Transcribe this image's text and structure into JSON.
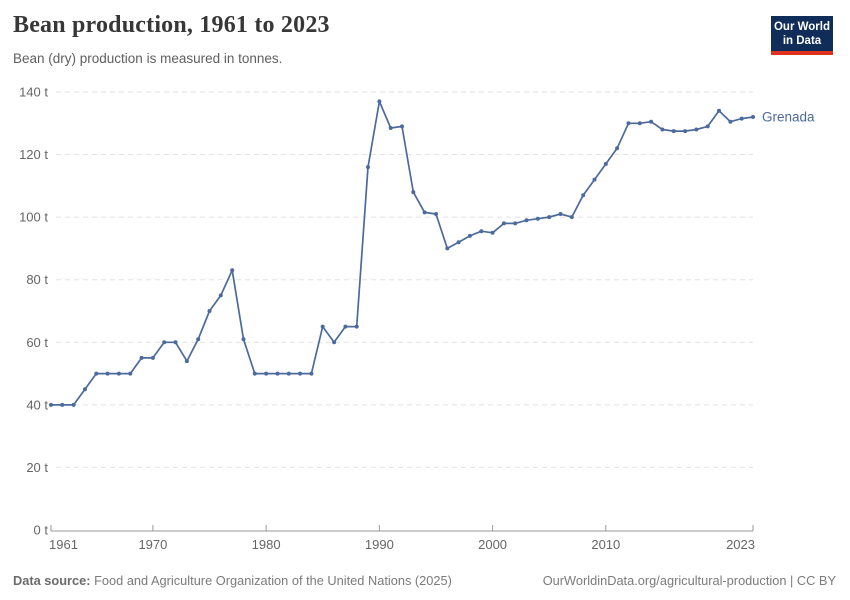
{
  "header": {
    "title": "Bean production, 1961 to 2023",
    "subtitle": "Bean (dry) production is measured in tonnes.",
    "logo_line1": "Our World",
    "logo_line2": "in Data"
  },
  "footer": {
    "source_label": "Data source:",
    "source_text": "Food and Agriculture Organization of the United Nations (2025)",
    "link_text": "OurWorldinData.org/agricultural-production | CC BY"
  },
  "colors": {
    "line": "#4C6A9C",
    "end_label": "#4C6A9C",
    "grid": "#e2e2e2",
    "axis": "#999999",
    "tick_text": "#666666",
    "logo_bg": "#102d59",
    "logo_stripe": "#e0301e"
  },
  "chart_data": {
    "type": "line",
    "title": "Bean production, 1961 to 2023",
    "subtitle": "Bean (dry) production is measured in tonnes.",
    "unit": "tonnes",
    "grid": "horizontal-dashed",
    "legend_position": "end-of-line-label",
    "xlim": [
      1961,
      2023
    ],
    "ylim": [
      0,
      140
    ],
    "y_ticks": [
      {
        "value": 0,
        "label": "0 t"
      },
      {
        "value": 20,
        "label": "20 t"
      },
      {
        "value": 40,
        "label": "40 t"
      },
      {
        "value": 60,
        "label": "60 t"
      },
      {
        "value": 80,
        "label": "80 t"
      },
      {
        "value": 100,
        "label": "100 t"
      },
      {
        "value": 120,
        "label": "120 t"
      },
      {
        "value": 140,
        "label": "140 t"
      }
    ],
    "x_ticks": [
      {
        "value": 1961,
        "label": "1961"
      },
      {
        "value": 1970,
        "label": "1970"
      },
      {
        "value": 1980,
        "label": "1980"
      },
      {
        "value": 1990,
        "label": "1990"
      },
      {
        "value": 2000,
        "label": "2000"
      },
      {
        "value": 2010,
        "label": "2010"
      },
      {
        "value": 2023,
        "label": "2023"
      }
    ],
    "series": [
      {
        "name": "Grenada",
        "x": [
          1961,
          1962,
          1963,
          1964,
          1965,
          1966,
          1967,
          1968,
          1969,
          1970,
          1971,
          1972,
          1973,
          1974,
          1975,
          1976,
          1977,
          1978,
          1979,
          1980,
          1981,
          1982,
          1983,
          1984,
          1985,
          1986,
          1987,
          1988,
          1989,
          1990,
          1991,
          1992,
          1993,
          1994,
          1995,
          1996,
          1997,
          1998,
          1999,
          2000,
          2001,
          2002,
          2003,
          2004,
          2005,
          2006,
          2007,
          2008,
          2009,
          2010,
          2011,
          2012,
          2013,
          2014,
          2015,
          2016,
          2017,
          2018,
          2019,
          2020,
          2021,
          2022,
          2023
        ],
        "values": [
          40,
          40,
          40,
          45,
          50,
          50,
          50,
          50,
          55,
          55,
          60,
          60,
          54,
          61,
          70,
          75,
          83,
          61,
          50,
          50,
          50,
          50,
          50,
          50,
          65,
          60,
          65,
          65,
          116,
          137,
          128.5,
          129,
          108,
          101.5,
          101,
          90,
          92,
          94,
          95.5,
          95,
          98,
          98,
          99,
          99.5,
          100,
          101,
          100,
          107,
          112,
          117,
          122,
          130,
          130,
          130.5,
          128,
          127.5,
          127.5,
          128,
          129,
          134,
          130.5,
          131.5,
          132
        ]
      }
    ]
  }
}
